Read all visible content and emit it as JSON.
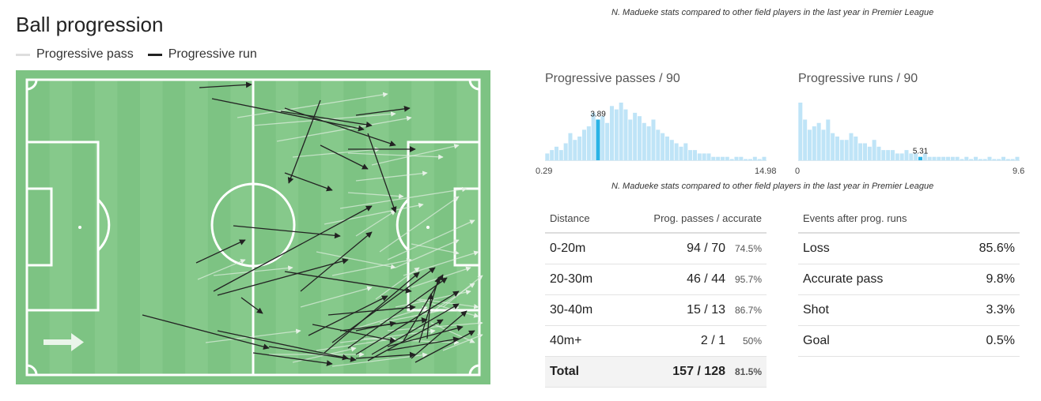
{
  "title": "Ball progression",
  "legend": {
    "pass_label": "Progressive pass",
    "run_label": "Progressive run",
    "pass_color": "#dedede",
    "run_color": "#222222"
  },
  "colors": {
    "pitch": "#7dc383",
    "pitch_stripe": "#86c98b",
    "histo": "#bfe4f7",
    "histo_highlight": "#2ab3e6"
  },
  "note_top": "N. Madueke stats compared to other field players in the last year in Premier League",
  "note_mid": "N. Madueke stats compared to other field players in the last year in Premier League",
  "chart_data": [
    {
      "type": "histogram",
      "title": "Progressive passes / 90",
      "xlim": [
        0.29,
        14.98
      ],
      "x_min_label": "0.29",
      "x_max_label": "14.98",
      "highlight_value": 3.89,
      "highlight_label": "3.89",
      "values": [
        2,
        3,
        4,
        3,
        5,
        8,
        6,
        7,
        9,
        10,
        14,
        12,
        13,
        11,
        16,
        15,
        17,
        15,
        12,
        14,
        13,
        11,
        10,
        12,
        9,
        8,
        7,
        6,
        5,
        4,
        5,
        3,
        3,
        2,
        2,
        2,
        1,
        1,
        1,
        1,
        0,
        1,
        1,
        0,
        0,
        1,
        0,
        1
      ]
    },
    {
      "type": "histogram",
      "title": "Progressive runs / 90",
      "xlim": [
        0,
        9.6
      ],
      "x_min_label": "0",
      "x_max_label": "9.6",
      "highlight_value": 5.31,
      "highlight_label": "5.31",
      "values": [
        17,
        12,
        9,
        10,
        11,
        9,
        12,
        8,
        7,
        6,
        6,
        8,
        7,
        5,
        5,
        4,
        6,
        4,
        3,
        3,
        3,
        2,
        2,
        3,
        2,
        2,
        1,
        2,
        1,
        1,
        1,
        1,
        1,
        1,
        1,
        0,
        1,
        0,
        1,
        0,
        0,
        1,
        0,
        0,
        1,
        0,
        0,
        1
      ]
    }
  ],
  "distance_table": {
    "headers": [
      "Distance",
      "Prog. passes / accurate"
    ],
    "rows": [
      {
        "label": "0-20m",
        "value": "94 / 70",
        "pct": "74.5%"
      },
      {
        "label": "20-30m",
        "value": "46 / 44",
        "pct": "95.7%"
      },
      {
        "label": "30-40m",
        "value": "15 / 13",
        "pct": "86.7%"
      },
      {
        "label": "40m+",
        "value": "2 / 1",
        "pct": "50%"
      }
    ],
    "total": {
      "label": "Total",
      "value": "157 / 128",
      "pct": "81.5%"
    }
  },
  "events_table": {
    "header": "Events after prog. runs",
    "rows": [
      {
        "label": "Loss",
        "value": "85.6%"
      },
      {
        "label": "Accurate pass",
        "value": "9.8%"
      },
      {
        "label": "Shot",
        "value": "3.3%"
      },
      {
        "label": "Goal",
        "value": "0.5%"
      }
    ]
  }
}
